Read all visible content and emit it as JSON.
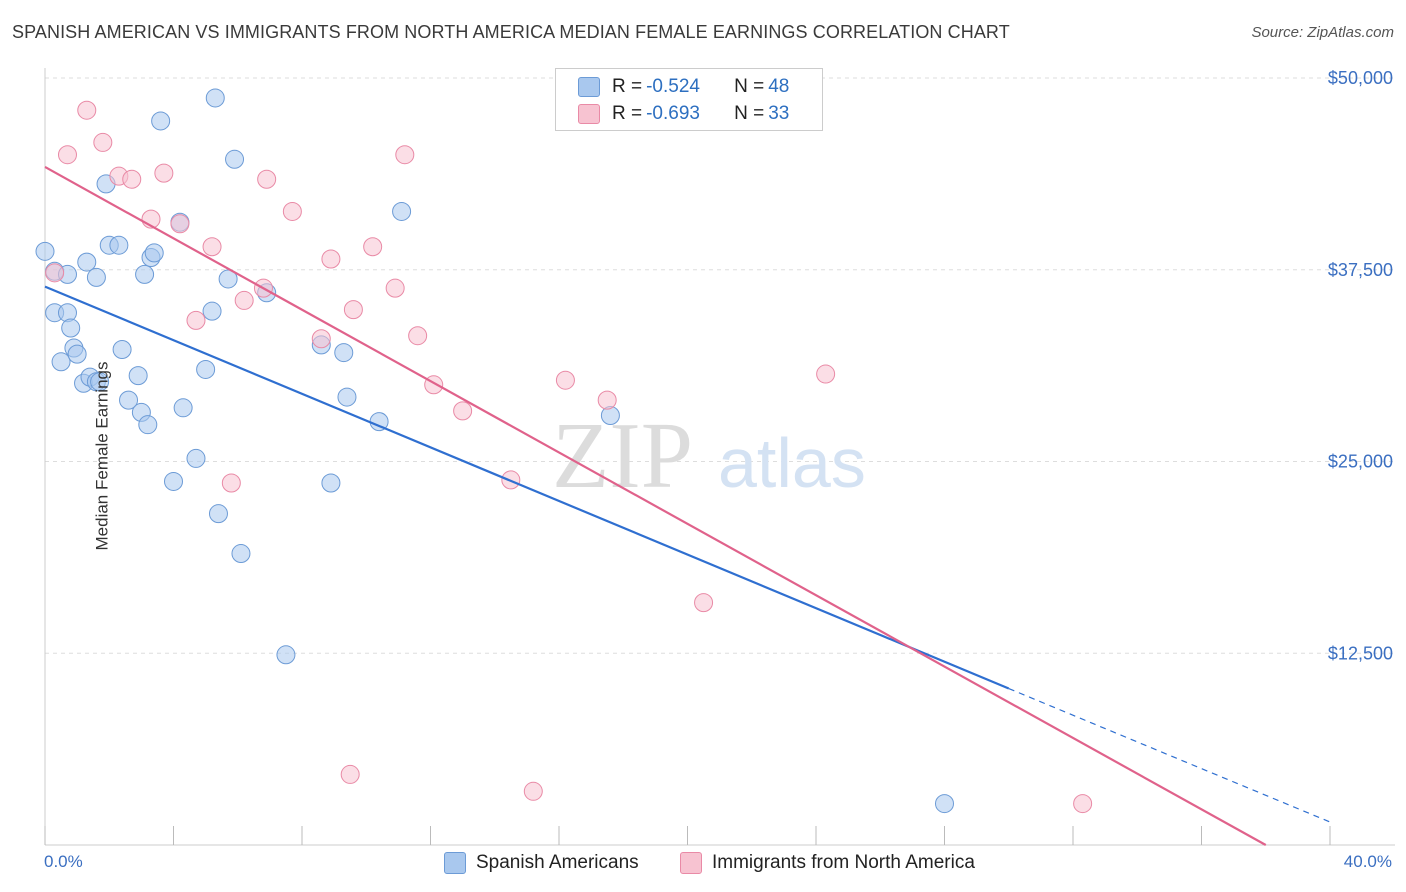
{
  "title": "SPANISH AMERICAN VS IMMIGRANTS FROM NORTH AMERICA MEDIAN FEMALE EARNINGS CORRELATION CHART",
  "source": "Source: ZipAtlas.com",
  "watermark": {
    "zip": "ZIP",
    "atlas": "atlas"
  },
  "stats": [
    {
      "r_label": "R = ",
      "r": "-0.524",
      "n_label": "N = ",
      "n": "48",
      "color": "#a9c8ee",
      "border": "#6c9bd6"
    },
    {
      "r_label": "R = ",
      "r": "-0.693",
      "n_label": "N = ",
      "n": "33",
      "color": "#f7c3d1",
      "border": "#e98aa6"
    }
  ],
  "legend": [
    "Spanish Americans",
    "Immigrants from North America"
  ],
  "chart_data": {
    "type": "scatter",
    "title": "SPANISH AMERICAN VS IMMIGRANTS FROM NORTH AMERICA MEDIAN FEMALE EARNINGS CORRELATION CHART",
    "xlabel": "",
    "ylabel": "Median Female Earnings",
    "x_tick_labels": [
      "0.0%",
      "40.0%"
    ],
    "y_tick_labels": [
      "$12,500",
      "$25,000",
      "$37,500",
      "$50,000"
    ],
    "y_ticks": [
      12500,
      25000,
      37500,
      50000
    ],
    "xlim": [
      0,
      40
    ],
    "ylim": [
      0,
      50000
    ],
    "grid": true,
    "legend_position": "bottom",
    "series": [
      {
        "name": "Spanish Americans",
        "color": "#6c9bd6",
        "fill": "#a9c8ee",
        "trend_line_color": "#2f6fd0",
        "trend": {
          "x0": 0,
          "y0": 36400,
          "x1": 30,
          "y1": 10200,
          "dash_to_x": 40,
          "dash_to_y": 1500
        },
        "points": [
          [
            0.0,
            38700
          ],
          [
            0.3,
            37400
          ],
          [
            0.3,
            34700
          ],
          [
            0.7,
            34700
          ],
          [
            0.8,
            33700
          ],
          [
            0.5,
            31500
          ],
          [
            0.9,
            32400
          ],
          [
            1.0,
            32000
          ],
          [
            1.2,
            30100
          ],
          [
            1.4,
            30500
          ],
          [
            1.6,
            30200
          ],
          [
            1.7,
            30200
          ],
          [
            1.3,
            38000
          ],
          [
            1.6,
            37000
          ],
          [
            1.9,
            43100
          ],
          [
            2.0,
            39100
          ],
          [
            2.3,
            39100
          ],
          [
            2.4,
            32300
          ],
          [
            2.6,
            29000
          ],
          [
            2.9,
            30600
          ],
          [
            3.0,
            28200
          ],
          [
            3.2,
            27400
          ],
          [
            3.1,
            37200
          ],
          [
            3.3,
            38300
          ],
          [
            3.4,
            38600
          ],
          [
            3.6,
            47200
          ],
          [
            4.0,
            23700
          ],
          [
            4.2,
            40600
          ],
          [
            4.3,
            28500
          ],
          [
            4.7,
            25200
          ],
          [
            5.0,
            31000
          ],
          [
            5.2,
            34800
          ],
          [
            5.4,
            21600
          ],
          [
            5.3,
            48700
          ],
          [
            5.7,
            36900
          ],
          [
            5.9,
            44700
          ],
          [
            6.1,
            19000
          ],
          [
            6.9,
            36000
          ],
          [
            7.5,
            12400
          ],
          [
            8.6,
            32600
          ],
          [
            8.9,
            23600
          ],
          [
            9.3,
            32100
          ],
          [
            9.4,
            29200
          ],
          [
            10.4,
            27600
          ],
          [
            11.1,
            41300
          ],
          [
            17.6,
            28000
          ],
          [
            28.0,
            2700
          ],
          [
            0.7,
            37200
          ]
        ]
      },
      {
        "name": "Immigrants from North America",
        "color": "#e98aa6",
        "fill": "#f7c3d1",
        "trend_line_color": "#e0628b",
        "trend": {
          "x0": 0,
          "y0": 44200,
          "x1": 38,
          "y1": 0
        },
        "points": [
          [
            0.3,
            37300
          ],
          [
            0.7,
            45000
          ],
          [
            1.3,
            47900
          ],
          [
            1.8,
            45800
          ],
          [
            2.3,
            43600
          ],
          [
            2.7,
            43400
          ],
          [
            3.3,
            40800
          ],
          [
            3.7,
            43800
          ],
          [
            4.2,
            40500
          ],
          [
            4.7,
            34200
          ],
          [
            5.2,
            39000
          ],
          [
            5.8,
            23600
          ],
          [
            6.2,
            35500
          ],
          [
            6.8,
            36300
          ],
          [
            6.9,
            43400
          ],
          [
            7.7,
            41300
          ],
          [
            8.6,
            33000
          ],
          [
            8.9,
            38200
          ],
          [
            9.5,
            4600
          ],
          [
            9.6,
            34900
          ],
          [
            10.2,
            39000
          ],
          [
            10.9,
            36300
          ],
          [
            11.2,
            45000
          ],
          [
            11.6,
            33200
          ],
          [
            12.1,
            30000
          ],
          [
            13.0,
            28300
          ],
          [
            14.5,
            23800
          ],
          [
            15.2,
            3500
          ],
          [
            16.2,
            30300
          ],
          [
            17.5,
            29000
          ],
          [
            20.5,
            15800
          ],
          [
            24.3,
            30700
          ],
          [
            32.3,
            2700
          ]
        ]
      }
    ]
  }
}
